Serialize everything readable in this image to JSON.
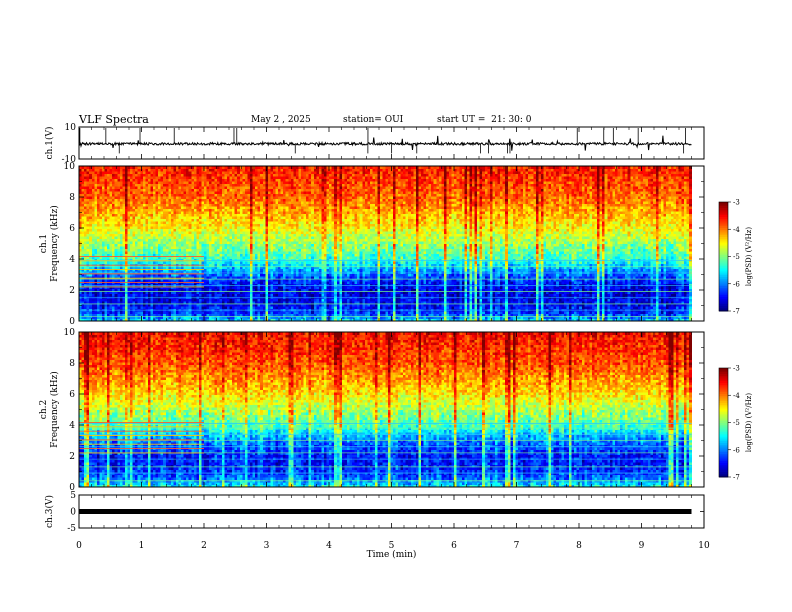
{
  "header": {
    "title": "VLF Spectra",
    "date": "May 2 , 2025",
    "station": "station= OUI",
    "start": "start UT =  21: 30: 0"
  },
  "chart_data": [
    {
      "type": "line",
      "ylabel": "ch.1(V)",
      "ylim": [
        -10,
        10
      ],
      "yticks": [
        "10",
        "-10"
      ],
      "trace": {
        "baseline": -0.5,
        "noise_amplitude": 1.5,
        "spike_amplitude": 5,
        "color": "#000000"
      },
      "x_extent_min": 9.8
    },
    {
      "type": "heatmap",
      "ylabel": "ch.1",
      "ylabel2": "Frequency (kHz)",
      "xlim": [
        0,
        10
      ],
      "ylim": [
        0,
        10
      ],
      "yticks": [
        "0",
        "2",
        "4",
        "6",
        "8",
        "10"
      ],
      "data_x_extent_min": 9.8,
      "colormap": "jet",
      "color_range": [
        -7,
        -3
      ],
      "colorbar_label": "log(PSD) (V²/Hz)",
      "colorbar_ticks": [
        "-3",
        "-4",
        "-5",
        "-6",
        "-7"
      ],
      "spectrum_profile": {
        "freq_khz": [
          0,
          0.5,
          1,
          1.5,
          2,
          2.5,
          3,
          3.5,
          4,
          5,
          6,
          7,
          8,
          10
        ],
        "log_psd": [
          -5.6,
          -6.3,
          -6.5,
          -6.6,
          -6.6,
          -6.4,
          -6.1,
          -5.7,
          -5.3,
          -4.9,
          -4.5,
          -4.2,
          -3.9,
          -3.6
        ]
      },
      "steady_lines_khz": [
        0.3,
        0.7,
        1.1,
        1.5,
        1.9,
        2.3,
        2.7,
        3.1,
        3.5,
        3.9
      ],
      "early_lines_until_min": 2.0
    },
    {
      "type": "heatmap",
      "ylabel": "ch.2",
      "ylabel2": "Frequency (kHz)",
      "xlim": [
        0,
        10
      ],
      "ylim": [
        0,
        10
      ],
      "yticks": [
        "0",
        "2",
        "4",
        "6",
        "8",
        "10"
      ],
      "data_x_extent_min": 9.8,
      "colormap": "jet",
      "color_range": [
        -7,
        -3
      ],
      "colorbar_label": "log(PSD) (V²/Hz)",
      "colorbar_ticks": [
        "-3",
        "-4",
        "-5",
        "-6",
        "-7"
      ],
      "spectrum_profile": {
        "freq_khz": [
          0,
          0.5,
          1,
          1.5,
          2,
          2.5,
          3,
          3.5,
          4,
          5,
          6,
          7,
          8,
          10
        ],
        "log_psd": [
          -5.4,
          -6.0,
          -6.3,
          -6.4,
          -6.4,
          -6.2,
          -6.0,
          -5.6,
          -5.2,
          -4.8,
          -4.4,
          -4.1,
          -3.8,
          -3.5
        ]
      },
      "steady_lines_khz": [
        0.4,
        0.9,
        1.3,
        1.8,
        2.2,
        2.6,
        3.0,
        3.4,
        3.8,
        4.1
      ],
      "early_lines_until_min": 2.0
    },
    {
      "type": "line",
      "ylabel": "ch.3(V)",
      "ylim": [
        -5,
        5
      ],
      "yticks": [
        "5",
        "0",
        "-5"
      ],
      "trace": {
        "baseline": 0,
        "noise_amplitude": 0,
        "spike_amplitude": 0,
        "color": "#000000"
      },
      "x_extent_min": 9.8,
      "xlabel": "Time (min)",
      "xlim": [
        0,
        10
      ],
      "xticks": [
        "0",
        "1",
        "2",
        "3",
        "4",
        "5",
        "6",
        "7",
        "8",
        "9",
        "10"
      ]
    }
  ]
}
